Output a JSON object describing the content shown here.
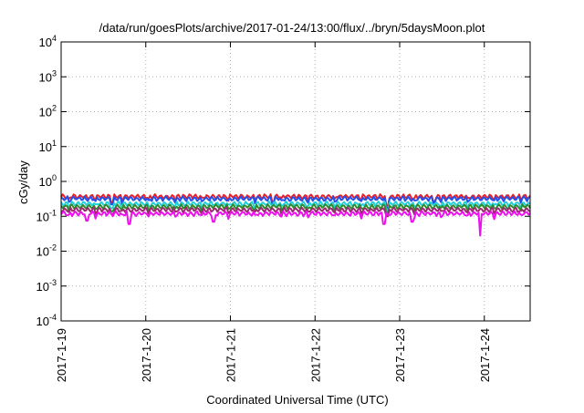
{
  "chart_data": {
    "type": "line",
    "title": "/data/run/goesPlots/archive/2017-01-24/13:00/flux/../bryn/5daysMoon.plot",
    "xlabel": "Coordinated Universal Time (UTC)",
    "ylabel": "cGy/day",
    "y_scale": "log",
    "ylim": [
      0.0001,
      10000
    ],
    "y_ticks": [
      {
        "value": 0.0001,
        "base": "10",
        "exp": "-4"
      },
      {
        "value": 0.001,
        "base": "10",
        "exp": "-3"
      },
      {
        "value": 0.01,
        "base": "10",
        "exp": "-2"
      },
      {
        "value": 0.1,
        "base": "10",
        "exp": "-1"
      },
      {
        "value": 1,
        "base": "10",
        "exp": "0"
      },
      {
        "value": 10,
        "base": "10",
        "exp": "1"
      },
      {
        "value": 100,
        "base": "10",
        "exp": "2"
      },
      {
        "value": 1000,
        "base": "10",
        "exp": "3"
      },
      {
        "value": 10000,
        "base": "10",
        "exp": "4"
      }
    ],
    "xlim": [
      "2017-01-19",
      "2017-01-24 13:00"
    ],
    "x_ticks": [
      "2017-1-19",
      "2017-1-20",
      "2017-1-21",
      "2017-1-22",
      "2017-1-23",
      "2017-1-24"
    ],
    "grid": true,
    "series": [
      {
        "color": "#e8202a",
        "base": 0.37,
        "dips": [
          {
            "x": 0.6,
            "v": 0.25
          },
          {
            "x": 2.5,
            "v": 0.26
          },
          {
            "x": 3.85,
            "v": 0.2
          },
          {
            "x": 4.4,
            "v": 0.27
          }
        ]
      },
      {
        "color": "#2450e8",
        "base": 0.32,
        "dips": [
          {
            "x": 0.6,
            "v": 0.22
          },
          {
            "x": 2.5,
            "v": 0.23
          },
          {
            "x": 3.85,
            "v": 0.17
          },
          {
            "x": 4.4,
            "v": 0.24
          }
        ]
      },
      {
        "color": "#22d0d8",
        "base": 0.23,
        "dips": [
          {
            "x": 0.6,
            "v": 0.17
          },
          {
            "x": 3.85,
            "v": 0.14
          }
        ]
      },
      {
        "color": "#2e8b2e",
        "base": 0.19,
        "dips": [
          {
            "x": 0.6,
            "v": 0.14
          },
          {
            "x": 3.85,
            "v": 0.12
          }
        ]
      },
      {
        "color": "#9b2a70",
        "base": 0.155,
        "dips": [
          {
            "x": 0.6,
            "v": 0.115
          },
          {
            "x": 3.85,
            "v": 0.1
          }
        ]
      },
      {
        "color": "#ee10ee",
        "base": 0.12,
        "dips": [
          {
            "x": 0.3,
            "v": 0.075
          },
          {
            "x": 0.8,
            "v": 0.06
          },
          {
            "x": 1.8,
            "v": 0.07
          },
          {
            "x": 3.82,
            "v": 0.06
          },
          {
            "x": 4.15,
            "v": 0.07
          },
          {
            "x": 4.95,
            "v": 0.028
          }
        ]
      }
    ]
  }
}
